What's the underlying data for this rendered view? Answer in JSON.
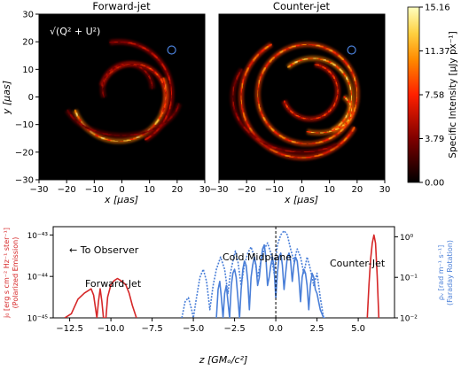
{
  "chart_data": [
    {
      "type": "heatmap",
      "title": "Forward-jet",
      "annotation": "√(Q² + U²)",
      "xlabel": "x [μas]",
      "ylabel": "y [μas]",
      "xlim": [
        -30,
        30
      ],
      "ylim": [
        -30,
        30
      ],
      "xticks": [
        "−30",
        "−20",
        "−10",
        "0",
        "10",
        "20",
        "30"
      ],
      "yticks": [
        "30",
        "20",
        "10",
        "0",
        "−10",
        "−20",
        "−30"
      ],
      "xtick_values": [
        -30,
        -20,
        -10,
        0,
        10,
        20,
        30
      ],
      "ytick_values": [
        30,
        20,
        10,
        0,
        -10,
        -20,
        -30
      ],
      "marker_circle": {
        "x": 18,
        "y": 17,
        "color": "#4a7fd8"
      },
      "rings": [
        {
          "cx": -1,
          "cy": 1,
          "rx": 17,
          "ry": 17,
          "start": 200,
          "end": 20,
          "intensity": 0.9
        },
        {
          "cx": -1,
          "cy": 1,
          "rx": 19,
          "ry": 19,
          "start": 300,
          "end": 100,
          "intensity": 0.45
        },
        {
          "cx": 4,
          "cy": 0,
          "rx": 12,
          "ry": 12,
          "start": 330,
          "end": 160,
          "intensity": 0.6
        },
        {
          "cx": 2,
          "cy": 3,
          "rx": 9,
          "ry": 9,
          "start": 0,
          "end": 200,
          "intensity": 0.35
        },
        {
          "cx": 0,
          "cy": 0,
          "rx": 21,
          "ry": 14,
          "start": 200,
          "end": 350,
          "intensity": 0.3
        }
      ]
    },
    {
      "type": "heatmap",
      "title": "Counter-jet",
      "xlabel": "x [μas]",
      "xlim": [
        -30,
        30
      ],
      "ylim": [
        -30,
        30
      ],
      "xticks": [
        "−30",
        "−20",
        "−10",
        "0",
        "10",
        "20",
        "30"
      ],
      "xtick_values": [
        -30,
        -20,
        -10,
        0,
        10,
        20,
        30
      ],
      "marker_circle": {
        "x": 18,
        "y": 17,
        "color": "#4a7fd8"
      },
      "colorbar": {
        "label": "Specific Intensity [μJy px⁻¹]",
        "ticks": [
          "15.16",
          "11.37",
          "7.58",
          "3.79",
          "0.00"
        ],
        "tick_values": [
          15.16,
          11.37,
          7.58,
          3.79,
          0.0
        ],
        "range": [
          0.0,
          15.16
        ],
        "colormap": "afmhot"
      },
      "rings": [
        {
          "cx": 0,
          "cy": 0,
          "rx": 22,
          "ry": 22,
          "start": 120,
          "end": 330,
          "intensity": 0.7
        },
        {
          "cx": 2,
          "cy": 1,
          "rx": 18,
          "ry": 18,
          "start": 0,
          "end": 360,
          "intensity": 0.75
        },
        {
          "cx": 4,
          "cy": 0,
          "rx": 14,
          "ry": 14,
          "start": 300,
          "end": 130,
          "intensity": 0.9
        },
        {
          "cx": 3,
          "cy": 2,
          "rx": 10,
          "ry": 10,
          "start": 200,
          "end": 80,
          "intensity": 0.6
        },
        {
          "cx": 6,
          "cy": -5,
          "rx": 12,
          "ry": 8,
          "start": 250,
          "end": 40,
          "intensity": 0.85
        },
        {
          "cx": 0,
          "cy": 0,
          "rx": 25,
          "ry": 20,
          "start": 150,
          "end": 300,
          "intensity": 0.35
        }
      ]
    },
    {
      "type": "line",
      "xlabel": "z [GMₒ/c²]",
      "ylabel_left": "j₀ [erg s cm⁻² Hz⁻¹ ster⁻¹]",
      "ylabel_left_sub": "(Polarized Emission)",
      "ylabel_right": "ρᵥ [rad m⁻¹ s⁻¹]",
      "ylabel_right_sub": "(Faraday Rotation)",
      "xlim": [
        -13.5,
        7.2
      ],
      "xticks": [
        "−12.5",
        "−10.0",
        "−7.5",
        "−5.0",
        "−2.5",
        "0.0",
        "2.5",
        "5.0"
      ],
      "xtick_values": [
        -12.5,
        -10,
        -7.5,
        -5,
        -2.5,
        0,
        2.5,
        5
      ],
      "ylim_left_log10": [
        -45,
        -42.8
      ],
      "yticks_left": [
        "10⁻⁴⁵",
        "10⁻⁴⁴",
        "10⁻⁴³"
      ],
      "ylim_right_log10": [
        -2,
        0.25
      ],
      "yticks_right": [
        "10⁻²",
        "10⁻¹",
        "10⁰"
      ],
      "annotations": [
        "← To Observer",
        "Forward-Jet",
        "Cold Midplane",
        "Counter-Jet"
      ],
      "midplane_line_x": 0,
      "series": [
        {
          "color": "#d62728",
          "style": "solid",
          "axis": "left",
          "x": [
            -12.8,
            -12.4,
            -12.0,
            -11.6,
            -11.2,
            -11.05,
            -10.85,
            -10.75,
            -10.65,
            -10.55,
            -10.45,
            -10.3,
            -10.2,
            -10.0,
            -9.8,
            -9.6,
            -9.4,
            -9.1,
            -8.9,
            -8.7,
            -8.45
          ],
          "y": [
            -45,
            -44.9,
            -44.55,
            -44.4,
            -44.3,
            -44.45,
            -45,
            -44.6,
            -44.3,
            -44.6,
            -45,
            -45,
            -44.5,
            -44.2,
            -44.1,
            -44.05,
            -44.1,
            -44.2,
            -44.4,
            -44.7,
            -45
          ]
        },
        {
          "color": "#d62728",
          "style": "solid",
          "axis": "left",
          "x": [
            5.55,
            5.65,
            5.75,
            5.85,
            5.95,
            6.05,
            6.15,
            6.25
          ],
          "y": [
            -45,
            -44.2,
            -43.6,
            -43.2,
            -43.0,
            -43.2,
            -44.0,
            -45
          ]
        },
        {
          "color": "#4a7fd8",
          "style": "dashed",
          "axis": "right",
          "x": [
            -5.7,
            -5.5,
            -5.3,
            -5.1,
            -5.0,
            -4.85,
            -4.6,
            -4.4,
            -4.2,
            -4.0,
            -3.8,
            -3.6,
            -3.35,
            -3.1,
            -2.9,
            -2.75,
            -2.6,
            -2.45,
            -2.3,
            -2.1,
            -1.9,
            -1.7,
            -1.5,
            -1.3,
            -1.1,
            -0.9,
            -0.7,
            -0.5,
            -0.3,
            -0.1,
            0.1,
            0.3,
            0.5,
            0.7,
            0.9,
            1.1,
            1.3,
            1.5,
            1.7,
            1.9,
            2.1,
            2.3,
            2.5,
            2.7,
            2.9
          ],
          "y": [
            -2.0,
            -1.6,
            -1.5,
            -1.8,
            -2.0,
            -1.6,
            -1.0,
            -0.8,
            -1.1,
            -1.8,
            -1.2,
            -0.8,
            -0.5,
            -0.8,
            -1.4,
            -0.9,
            -0.6,
            -0.35,
            -0.6,
            -1.2,
            -0.7,
            -0.4,
            -0.25,
            -0.5,
            -1.0,
            -0.6,
            -0.3,
            -0.15,
            -0.4,
            -0.9,
            -0.2,
            0.05,
            0.15,
            0.05,
            -0.3,
            -0.6,
            -0.3,
            -0.5,
            -0.9,
            -0.5,
            -0.8,
            -1.2,
            -0.9,
            -1.5,
            -2.0
          ]
        },
        {
          "color": "#4a7fd8",
          "style": "solid",
          "axis": "right",
          "x": [
            -3.6,
            -3.5,
            -3.4,
            -3.3,
            -3.2,
            -3.1,
            -3.0,
            -2.9,
            -2.8,
            -2.7,
            -2.6,
            -2.5,
            -2.4,
            -2.3,
            -2.2,
            -2.1,
            -2.0,
            -1.9,
            -1.8,
            -1.7,
            -1.6,
            -1.5,
            -1.4,
            -1.3,
            -1.2,
            -1.1,
            -1.0,
            -0.9,
            -0.8,
            -0.7,
            -0.6,
            -0.5,
            -0.4,
            -0.3,
            -0.2,
            -0.1,
            0.0,
            0.1,
            0.2,
            0.3,
            0.4,
            0.5,
            0.6,
            0.7,
            0.8,
            0.9,
            1.0,
            1.1,
            1.2,
            1.3,
            1.4,
            1.5,
            1.6,
            1.7,
            1.8,
            1.9,
            2.0,
            2.1,
            2.2,
            2.3,
            2.4,
            2.5,
            2.6,
            2.7,
            2.8,
            2.9,
            3.0
          ],
          "y": [
            -2.0,
            -1.3,
            -1.1,
            -1.5,
            -2.0,
            -1.4,
            -1.2,
            -1.6,
            -2.0,
            -1.2,
            -0.9,
            -0.8,
            -1.0,
            -1.5,
            -2.0,
            -1.3,
            -0.8,
            -0.6,
            -0.7,
            -1.1,
            -1.8,
            -1.0,
            -0.7,
            -0.5,
            -0.7,
            -1.2,
            -1.0,
            -0.6,
            -0.3,
            -0.2,
            -0.5,
            -1.2,
            -1.0,
            -0.7,
            -0.5,
            -0.8,
            -1.5,
            -0.9,
            -0.5,
            -0.4,
            -0.7,
            -1.3,
            -0.9,
            -0.5,
            -0.4,
            -0.6,
            -1.1,
            -0.7,
            -0.5,
            -0.6,
            -1.0,
            -1.6,
            -1.0,
            -0.8,
            -0.9,
            -1.2,
            -1.8,
            -1.2,
            -0.9,
            -1.0,
            -1.3,
            -1.4,
            -1.6,
            -1.8,
            -1.9,
            -2.0,
            -2.0
          ]
        }
      ]
    }
  ]
}
